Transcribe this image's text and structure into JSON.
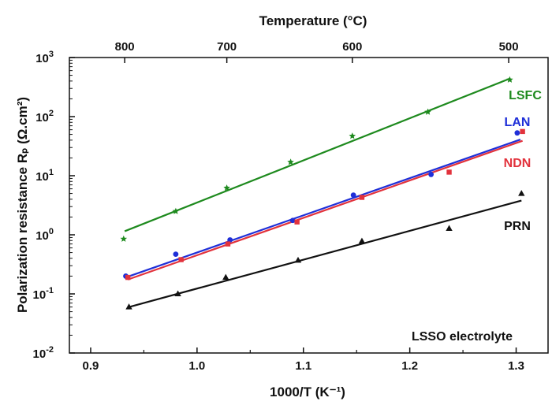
{
  "chart_data": {
    "type": "scatter",
    "log_y": true,
    "xlabel": "1000/T (K⁻¹)",
    "ylabel": "Polarization resistance Rₚ (Ω.cm²)",
    "top_xlabel": "Temperature (°C)",
    "xlim": [
      0.88,
      1.33
    ],
    "ylim": [
      0.01,
      1000
    ],
    "x_ticks": [
      {
        "value": 0.9,
        "label": "0.9"
      },
      {
        "value": 1.0,
        "label": "1.0"
      },
      {
        "value": 1.1,
        "label": "1.1"
      },
      {
        "value": 1.2,
        "label": "1.2"
      },
      {
        "value": 1.3,
        "label": "1.3"
      }
    ],
    "y_ticks": [
      {
        "value": 0.01,
        "base": "10",
        "exp": "-2"
      },
      {
        "value": 0.1,
        "base": "10",
        "exp": "-1"
      },
      {
        "value": 1,
        "base": "10",
        "exp": "0"
      },
      {
        "value": 10,
        "base": "10",
        "exp": "1"
      },
      {
        "value": 100,
        "base": "10",
        "exp": "2"
      },
      {
        "value": 1000,
        "base": "10",
        "exp": "3"
      }
    ],
    "top_ticks": [
      {
        "x": 0.932,
        "label": "800"
      },
      {
        "x": 1.028,
        "label": "700"
      },
      {
        "x": 1.146,
        "label": "600"
      },
      {
        "x": 1.293,
        "label": "500"
      }
    ],
    "annotation": "LSSO electrolyte",
    "series": [
      {
        "name": "LSFC",
        "color": "#1e8a1e",
        "marker": "star",
        "points": [
          [
            0.931,
            0.85
          ],
          [
            0.98,
            2.5
          ],
          [
            1.028,
            6.2
          ],
          [
            1.088,
            17
          ],
          [
            1.146,
            47
          ],
          [
            1.217,
            120
          ],
          [
            1.294,
            420
          ]
        ],
        "fit": [
          [
            0.932,
            1.15
          ],
          [
            1.294,
            440
          ]
        ]
      },
      {
        "name": "LAN",
        "color": "#1f2fd8",
        "marker": "circle",
        "points": [
          [
            0.933,
            0.2
          ],
          [
            0.98,
            0.47
          ],
          [
            1.031,
            0.82
          ],
          [
            1.09,
            1.75
          ],
          [
            1.147,
            4.7
          ],
          [
            1.22,
            10.5
          ],
          [
            1.301,
            53
          ]
        ],
        "fit": [
          [
            0.933,
            0.19
          ],
          [
            1.304,
            41
          ]
        ]
      },
      {
        "name": "NDN",
        "color": "#e2323c",
        "marker": "square",
        "points": [
          [
            0.935,
            0.19
          ],
          [
            0.985,
            0.38
          ],
          [
            1.029,
            0.7
          ],
          [
            1.094,
            1.65
          ],
          [
            1.155,
            4.3
          ],
          [
            1.237,
            11.5
          ],
          [
            1.306,
            56
          ]
        ],
        "fit": [
          [
            0.935,
            0.175
          ],
          [
            1.306,
            39
          ]
        ]
      },
      {
        "name": "PRN",
        "color": "#111111",
        "marker": "triangle",
        "points": [
          [
            0.936,
            0.06
          ],
          [
            0.982,
            0.1
          ],
          [
            1.027,
            0.19
          ],
          [
            1.095,
            0.37
          ],
          [
            1.155,
            0.78
          ],
          [
            1.237,
            1.28
          ],
          [
            1.305,
            5.0
          ]
        ],
        "fit": [
          [
            0.936,
            0.06
          ],
          [
            1.305,
            3.8
          ]
        ]
      }
    ]
  }
}
